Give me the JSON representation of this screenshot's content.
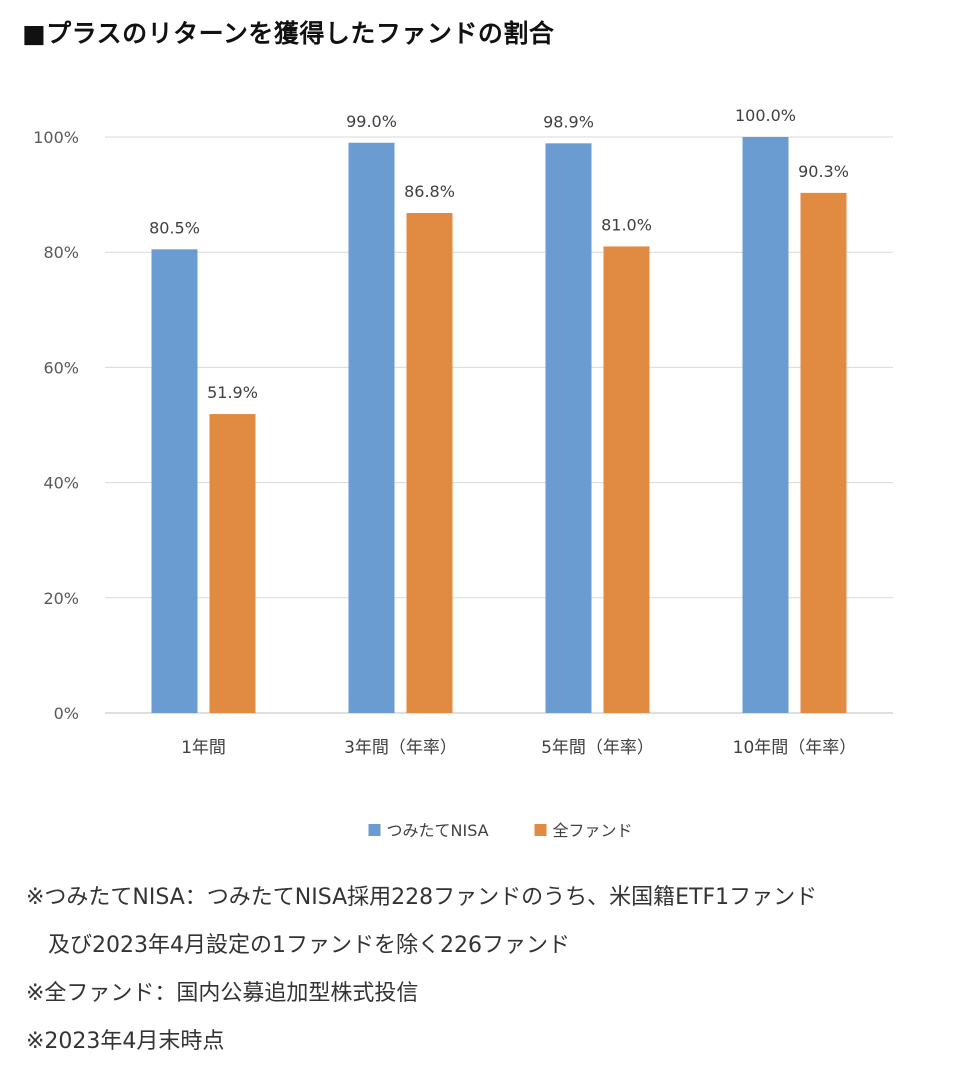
{
  "title": "■プラスのリターンを獲得したファンドの割合",
  "chart_data": {
    "type": "bar",
    "categories": [
      "1年間",
      "3年間（年率）",
      "5年間（年率）",
      "10年間（年率）"
    ],
    "series": [
      {
        "name": "つみたてNISA",
        "color": "#6a9bd1",
        "values": [
          80.5,
          99.0,
          98.9,
          100.0
        ],
        "labels": [
          "80.5%",
          "99.0%",
          "98.9%",
          "100.0%"
        ]
      },
      {
        "name": "全ファンド",
        "color": "#e08a42",
        "values": [
          51.9,
          86.8,
          81.0,
          90.3
        ],
        "labels": [
          "51.9%",
          "86.8%",
          "81.0%",
          "90.3%"
        ]
      }
    ],
    "ylim": [
      0,
      100
    ],
    "yticks": [
      0,
      20,
      40,
      60,
      80,
      100
    ],
    "ytick_labels": [
      "0%",
      "20%",
      "40%",
      "60%",
      "80%",
      "100%"
    ],
    "grid": true,
    "legend_position": "bottom-center"
  },
  "notes": [
    "※つみたてNISA：つみたてNISA採用228ファンドのうち、米国籍ETF1ファンド",
    "及び2023年4月設定の1ファンドを除く226ファンド",
    "※全ファンド：国内公募追加型株式投信",
    "※2023年4月末時点"
  ]
}
